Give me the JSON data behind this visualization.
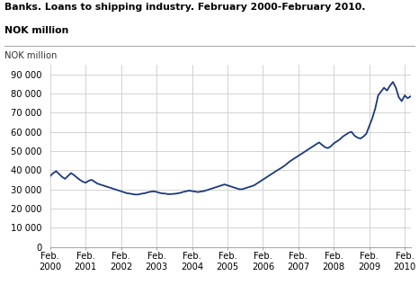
{
  "title_line1": "Banks. Loans to shipping industry. February 2000-February 2010.",
  "title_line2": "NOK million",
  "ylabel": "NOK million",
  "line_color": "#1a3a7a",
  "line_width": 1.3,
  "background_color": "#ffffff",
  "grid_color": "#cccccc",
  "ylim": [
    0,
    95000
  ],
  "yticks": [
    0,
    10000,
    20000,
    30000,
    40000,
    50000,
    60000,
    70000,
    80000,
    90000
  ],
  "values": [
    37000,
    38500,
    39500,
    38000,
    36500,
    35500,
    37000,
    38500,
    37500,
    36200,
    35000,
    34000,
    33500,
    34500,
    35000,
    34000,
    33000,
    32500,
    32000,
    31500,
    31000,
    30500,
    30000,
    29500,
    29000,
    28500,
    28000,
    27800,
    27500,
    27300,
    27400,
    27800,
    28000,
    28500,
    28800,
    29000,
    28700,
    28200,
    27900,
    27800,
    27500,
    27600,
    27700,
    27900,
    28200,
    28700,
    29000,
    29400,
    29100,
    28900,
    28600,
    28900,
    29100,
    29600,
    30100,
    30600,
    31100,
    31600,
    32100,
    32600,
    32100,
    31600,
    31100,
    30600,
    30100,
    30100,
    30600,
    31100,
    31600,
    32100,
    33100,
    34100,
    35100,
    36100,
    37100,
    38100,
    39100,
    40100,
    41000,
    42000,
    43200,
    44500,
    45500,
    46500,
    47500,
    48500,
    49500,
    50500,
    51500,
    52500,
    53500,
    54500,
    53200,
    52000,
    51500,
    52500,
    54000,
    55000,
    56000,
    57500,
    58500,
    59500,
    60000,
    58000,
    57000,
    56500,
    57500,
    59000,
    63000,
    67000,
    72000,
    79000,
    81000,
    83000,
    81500,
    84000,
    86000,
    83000,
    78000,
    76000,
    79000,
    77500,
    78500
  ],
  "x_tick_labels": [
    "Feb.\n2000",
    "Feb.\n2001",
    "Feb.\n2002",
    "Feb.\n2003",
    "Feb.\n2004",
    "Feb.\n2005",
    "Feb.\n2006",
    "Feb.\n2007",
    "Feb.\n2008",
    "Feb.\n2009",
    "Feb.\n2010"
  ],
  "x_tick_positions": [
    0,
    12,
    24,
    36,
    48,
    60,
    72,
    84,
    96,
    108,
    120
  ]
}
